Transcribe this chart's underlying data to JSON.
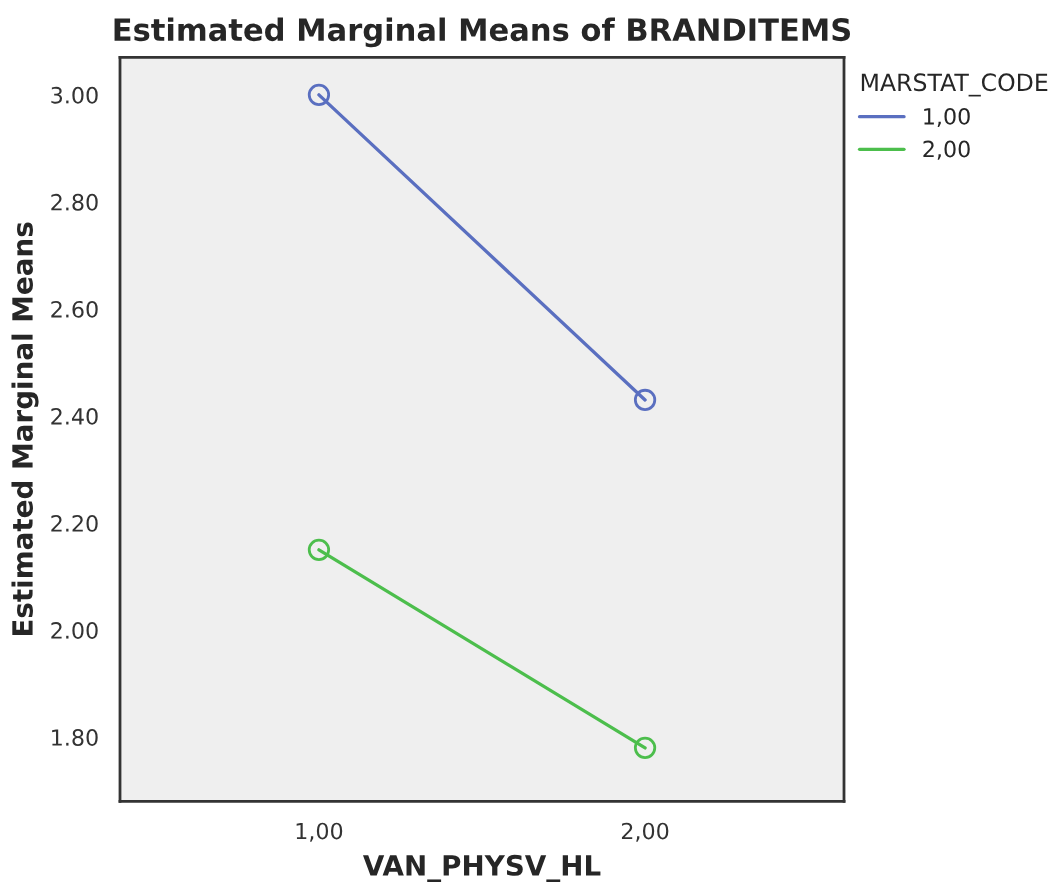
{
  "chart_data": {
    "type": "line",
    "title": "Estimated Marginal Means of BRANDITEMS",
    "xlabel": "VAN_PHYSV_HL",
    "ylabel": "Estimated Marginal Means",
    "legend_title": "MARSTAT_CODE",
    "categories": [
      "1,00",
      "2,00"
    ],
    "series": [
      {
        "name": "1,00",
        "color": "#5a6fc0",
        "values": [
          3.0,
          2.43
        ]
      },
      {
        "name": "2,00",
        "color": "#4cbe4c",
        "values": [
          2.15,
          1.78
        ]
      }
    ],
    "ylim": [
      1.68,
      3.07
    ],
    "yticks": [
      {
        "value": 1.8,
        "label": "1.80"
      },
      {
        "value": 2.0,
        "label": "2.00"
      },
      {
        "value": 2.2,
        "label": "2.20"
      },
      {
        "value": 2.4,
        "label": "2.40"
      },
      {
        "value": 2.6,
        "label": "2.60"
      },
      {
        "value": 2.8,
        "label": "2.80"
      },
      {
        "value": 3.0,
        "label": "3.00"
      }
    ],
    "marker": "circle",
    "line_style": "solid",
    "legend": "top right",
    "grid": false
  }
}
